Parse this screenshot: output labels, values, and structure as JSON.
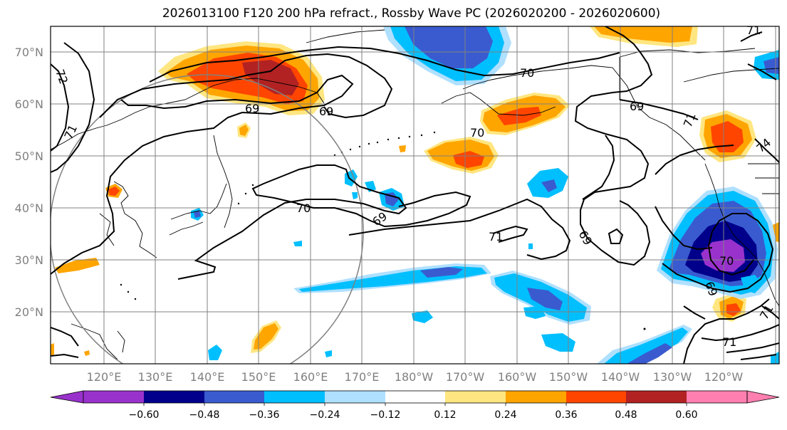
{
  "title": "2026013100 F120 200 hPa refract., Rossby Wave PC (2026020200 - 2026020600)",
  "lat_labels": [
    "70°N",
    "60°N",
    "50°N",
    "40°N",
    "30°N",
    "20°N"
  ],
  "lon_labels": [
    "120°E",
    "130°E",
    "140°E",
    "150°E",
    "160°E",
    "170°E",
    "180°W",
    "170°W",
    "160°W",
    "150°W",
    "140°W",
    "130°W",
    "120°W"
  ],
  "contour_labels": [
    "72",
    "71",
    "69",
    "69",
    "70",
    "70",
    "69",
    "71",
    "69",
    "70",
    "69",
    "71",
    "71",
    "74",
    "71",
    "70",
    "69",
    "71"
  ],
  "colorbar": {
    "ticks": [
      "−0.60",
      "−0.48",
      "−0.36",
      "−0.24",
      "−0.12",
      "0.12",
      "0.24",
      "0.36",
      "0.48",
      "0.60"
    ],
    "colors": [
      "#9932cc",
      "#00008b",
      "#3a5bcf",
      "#00bfff",
      "#b0e0ff",
      "#ffffff",
      "#ffe680",
      "#ffa500",
      "#ff4500",
      "#b22222",
      "#ff7fb0"
    ]
  },
  "palette": {
    "purple": "#9932cc",
    "navy": "#00008b",
    "blue": "#3a5bcf",
    "cyan": "#00bfff",
    "lightblue": "#b0e0ff",
    "yellow": "#ffe680",
    "orange": "#ffa500",
    "redorange": "#ff4500",
    "darkred": "#b22222"
  }
}
